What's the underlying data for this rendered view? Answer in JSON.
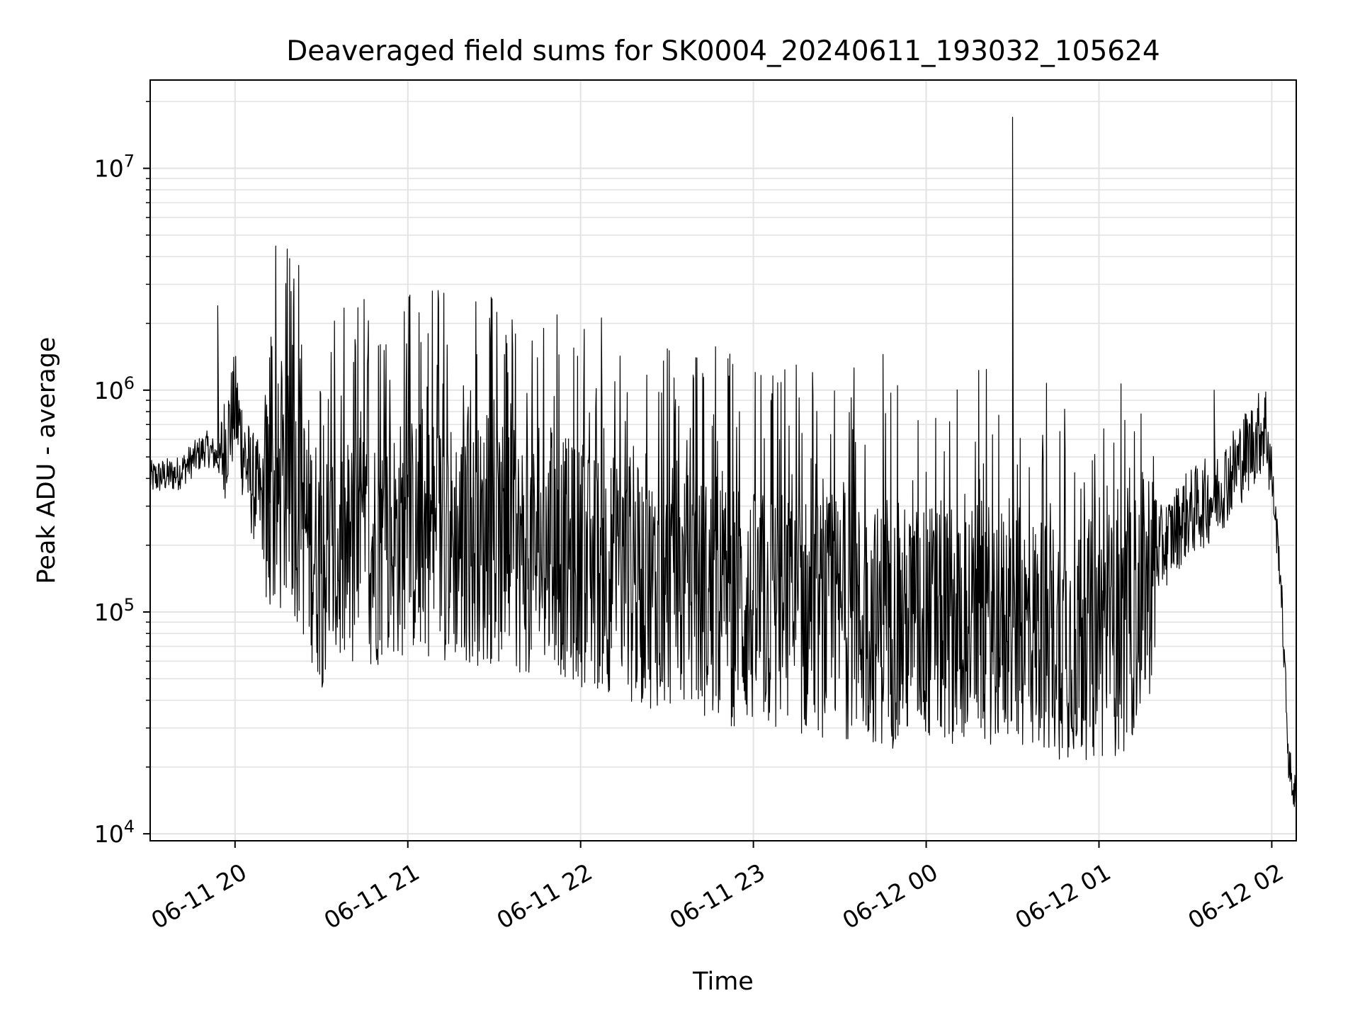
{
  "chart_data": {
    "type": "line",
    "title": "Deaveraged field sums for SK0004_20240611_193032_105624",
    "xlabel": "Time",
    "ylabel": "Peak ADU - average",
    "yscale": "log",
    "ylim": [
      9300,
      25000000
    ],
    "xlim": [
      "06-11 19:30:32",
      "06-12 02:08:30"
    ],
    "x_ticks": [
      "06-11 20",
      "06-11 21",
      "06-11 22",
      "06-11 23",
      "06-12 00",
      "06-12 01",
      "06-12 02"
    ],
    "y_ticks": [
      {
        "base": "10",
        "exp": "4",
        "value": 10000
      },
      {
        "base": "10",
        "exp": "5",
        "value": 100000
      },
      {
        "base": "10",
        "exp": "6",
        "value": 1000000
      },
      {
        "base": "10",
        "exp": "7",
        "value": 10000000
      }
    ],
    "grid": true,
    "series_color": "#000000",
    "series": [
      {
        "x": [
          "06-11 19:30",
          "06-11 19:40",
          "06-11 19:50",
          "06-11 19:55",
          "06-11 20:00",
          "06-11 20:05",
          "06-11 20:10",
          "06-11 20:20",
          "06-11 20:30",
          "06-11 20:40",
          "06-11 20:50",
          "06-11 21:00",
          "06-11 21:10",
          "06-11 21:20",
          "06-11 21:30",
          "06-11 21:40",
          "06-11 21:50",
          "06-11 22:00",
          "06-11 22:10",
          "06-11 22:20",
          "06-11 22:30",
          "06-11 22:40",
          "06-11 22:50",
          "06-11 23:00",
          "06-11 23:10",
          "06-11 23:20",
          "06-11 23:30",
          "06-11 23:40",
          "06-11 23:50",
          "06-12 00:00",
          "06-12 00:10",
          "06-12 00:20",
          "06-12 00:30",
          "06-12 00:40",
          "06-12 00:50",
          "06-12 01:00",
          "06-12 01:10",
          "06-12 01:20",
          "06-12 01:30",
          "06-12 01:40",
          "06-12 01:50",
          "06-12 01:58",
          "06-12 02:00",
          "06-12 02:03",
          "06-12 02:06",
          "06-12 02:08"
        ],
        "y": [
          400000,
          420000,
          550000,
          480000,
          850000,
          400000,
          300000,
          350000,
          160000,
          180000,
          200000,
          220000,
          220000,
          200000,
          200000,
          180000,
          190000,
          160000,
          150000,
          130000,
          130000,
          120000,
          110000,
          100000,
          100000,
          95000,
          95000,
          90000,
          85000,
          90000,
          90000,
          90000,
          85000,
          80000,
          75000,
          75000,
          80000,
          180000,
          270000,
          330000,
          500000,
          700000,
          400000,
          150000,
          20000,
          15000
        ],
        "spikes": [
          {
            "x": "06-11 19:54",
            "y": 2400000
          },
          {
            "x": "06-11 20:12",
            "y": 1400000
          },
          {
            "x": "06-11 21:45",
            "y": 1400000
          },
          {
            "x": "06-11 22:40",
            "y": 1400000
          },
          {
            "x": "06-11 23:45",
            "y": 1450000
          },
          {
            "x": "06-12 00:30",
            "y": 17000000
          },
          {
            "x": "06-12 01:40",
            "y": 1000000
          }
        ]
      }
    ]
  }
}
